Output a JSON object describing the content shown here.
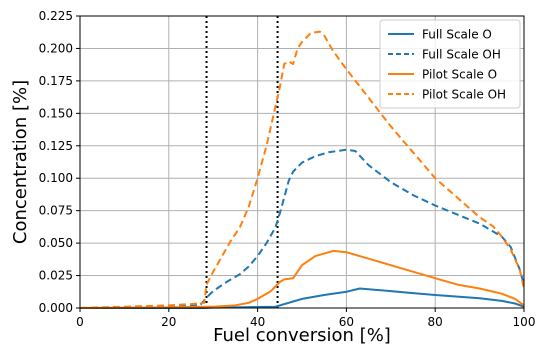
{
  "chart_data": {
    "type": "line",
    "title": "",
    "xlabel": "Fuel conversion [%]",
    "ylabel": "Concentration [%]",
    "xlim": [
      0,
      100
    ],
    "ylim": [
      0,
      0.225
    ],
    "xticks": [
      0,
      20,
      40,
      60,
      80,
      100
    ],
    "xtick_labels": [
      "0",
      "20",
      "40",
      "60",
      "80",
      "100"
    ],
    "yticks": [
      0,
      0.025,
      0.05,
      0.075,
      0.1,
      0.125,
      0.15,
      0.175,
      0.2,
      0.225
    ],
    "ytick_labels": [
      "0.000",
      "0.025",
      "0.050",
      "0.075",
      "0.100",
      "0.125",
      "0.150",
      "0.175",
      "0.200",
      "0.225"
    ],
    "grid": true,
    "legend_position": "top-right",
    "vlines": [
      28.5,
      44.5
    ],
    "series": [
      {
        "name": "Full Scale O",
        "color": "#1f77b4",
        "dash": "solid",
        "x": [
          0,
          28,
          30,
          35,
          40,
          44,
          45,
          48,
          50,
          55,
          60,
          63,
          65,
          70,
          75,
          80,
          85,
          90,
          95,
          98,
          100
        ],
        "y": [
          0,
          0,
          0.0003,
          0.0005,
          0.0008,
          0.001,
          0.002,
          0.005,
          0.007,
          0.01,
          0.0125,
          0.015,
          0.0145,
          0.013,
          0.0115,
          0.01,
          0.0088,
          0.0075,
          0.0055,
          0.0035,
          0.001
        ]
      },
      {
        "name": "Full Scale OH",
        "color": "#1f77b4",
        "dash": "dashed",
        "x": [
          0,
          20,
          27,
          28.5,
          30,
          33,
          36,
          38,
          40,
          42,
          44,
          45,
          46,
          47,
          48,
          50,
          53,
          56,
          60,
          62,
          65,
          70,
          75,
          80,
          85,
          90,
          95,
          97,
          99,
          100
        ],
        "y": [
          0,
          0.001,
          0.002,
          0.008,
          0.013,
          0.02,
          0.026,
          0.032,
          0.04,
          0.05,
          0.062,
          0.073,
          0.085,
          0.098,
          0.105,
          0.112,
          0.117,
          0.12,
          0.122,
          0.121,
          0.11,
          0.097,
          0.087,
          0.079,
          0.072,
          0.065,
          0.055,
          0.047,
          0.03,
          0.018
        ]
      },
      {
        "name": "Pilot Scale O",
        "color": "#ff7f0e",
        "dash": "solid",
        "x": [
          0,
          20,
          28,
          30,
          35,
          38,
          40,
          43,
          45,
          46,
          48,
          50,
          53,
          57,
          60,
          65,
          70,
          75,
          80,
          85,
          90,
          95,
          98,
          100
        ],
        "y": [
          0,
          0.0005,
          0.001,
          0.001,
          0.002,
          0.004,
          0.007,
          0.013,
          0.02,
          0.022,
          0.023,
          0.033,
          0.04,
          0.044,
          0.043,
          0.038,
          0.033,
          0.028,
          0.023,
          0.018,
          0.015,
          0.011,
          0.007,
          0.002
        ]
      },
      {
        "name": "Pilot Scale OH",
        "color": "#ff7f0e",
        "dash": "dashed",
        "x": [
          0,
          10,
          20,
          25,
          28,
          28.5,
          30,
          32,
          34,
          36,
          38,
          40,
          42,
          44,
          45,
          46,
          47,
          48,
          49,
          50,
          52,
          54,
          55,
          57,
          60,
          65,
          70,
          75,
          80,
          85,
          90,
          93,
          95,
          97,
          99,
          100
        ],
        "y": [
          0,
          0.001,
          0.002,
          0.003,
          0.004,
          0.018,
          0.028,
          0.04,
          0.052,
          0.062,
          0.078,
          0.1,
          0.125,
          0.155,
          0.17,
          0.188,
          0.19,
          0.188,
          0.2,
          0.205,
          0.212,
          0.213,
          0.21,
          0.198,
          0.184,
          0.162,
          0.14,
          0.12,
          0.1,
          0.085,
          0.07,
          0.063,
          0.055,
          0.045,
          0.03,
          0.015
        ]
      }
    ]
  }
}
